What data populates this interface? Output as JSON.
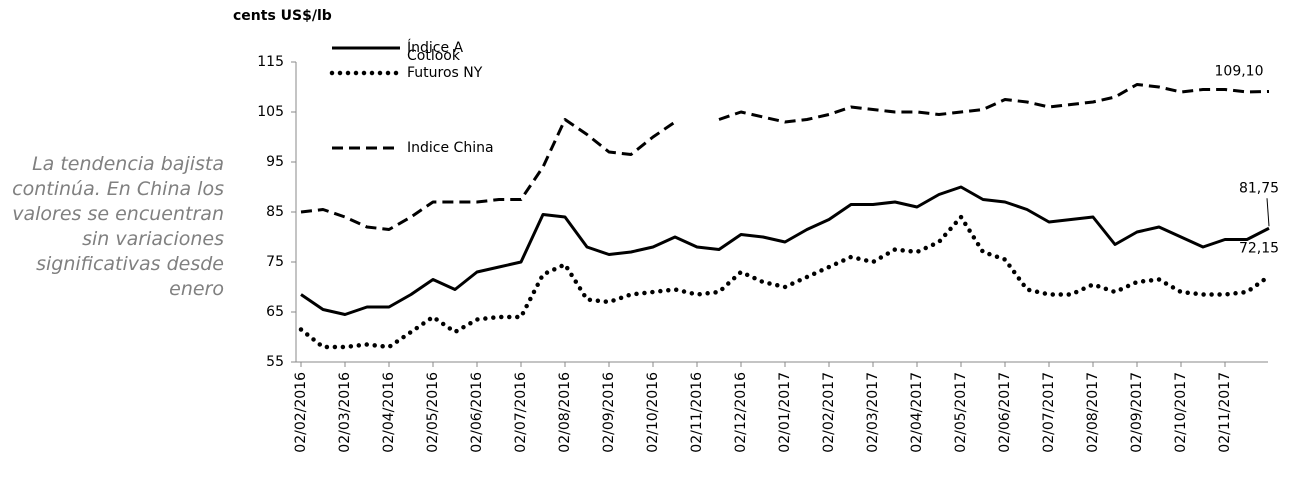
{
  "chart_data": {
    "type": "line",
    "y_label": "cents US$/lb",
    "annotation": "La tendencia bajista continúa. En China los valores se encuentran sin variaciones significativas desde enero",
    "categories": [
      "02/02/2016",
      null,
      "02/03/2016",
      null,
      "02/04/2016",
      null,
      "02/05/2016",
      null,
      "02/06/2016",
      null,
      "02/07/2016",
      null,
      "02/08/2016",
      null,
      "02/09/2016",
      null,
      "02/10/2016",
      null,
      "02/11/2016",
      null,
      "02/12/2016",
      null,
      "02/01/2017",
      null,
      "02/02/2017",
      null,
      "02/03/2017",
      null,
      "02/04/2017",
      null,
      "02/05/2017",
      null,
      "02/06/2017",
      null,
      "02/07/2017",
      null,
      "02/08/2017",
      null,
      "02/09/2017",
      null,
      "02/10/2017",
      null,
      "02/11/2017",
      null,
      null
    ],
    "series": [
      {
        "name": "Índice A",
        "color": "#000000",
        "style": "solid",
        "values": [
          68.5,
          65.5,
          64.5,
          66,
          66,
          68.5,
          71.5,
          69.5,
          73,
          74,
          75,
          84.5,
          84,
          78,
          76.5,
          77,
          78,
          80,
          78,
          77.5,
          80.5,
          80,
          79,
          81.5,
          83.5,
          86.5,
          86.5,
          87,
          86,
          88.5,
          90,
          87.5,
          87,
          85.5,
          83,
          83.5,
          84,
          78.5,
          81,
          82,
          80,
          78,
          79.5,
          79.5,
          81.75
        ],
        "value_labels": [
          null,
          null,
          null,
          null,
          null,
          null,
          null,
          null,
          null,
          null,
          null,
          null,
          null,
          null,
          null,
          null,
          null,
          null,
          null,
          null,
          null,
          null,
          null,
          null,
          null,
          null,
          null,
          null,
          null,
          null,
          null,
          null,
          null,
          null,
          null,
          null,
          null,
          null,
          null,
          null,
          null,
          null,
          null,
          null,
          "81,75"
        ]
      },
      {
        "name": "Cotlook Futuros NY",
        "color": "#000000",
        "style": "dotted",
        "values": [
          61.5,
          58,
          58,
          58.5,
          58,
          61,
          64,
          61,
          63.5,
          64,
          64,
          72.5,
          74.5,
          67.5,
          67,
          68.5,
          69,
          69.5,
          68.5,
          69,
          73,
          71,
          70,
          72,
          74,
          76,
          75,
          77.5,
          77,
          79,
          84,
          77,
          75.5,
          69.5,
          68.5,
          68.5,
          70.5,
          69,
          71,
          71.5,
          69,
          68.5,
          68.5,
          69,
          72.15
        ],
        "value_labels": [
          null,
          null,
          null,
          null,
          null,
          null,
          null,
          null,
          null,
          null,
          null,
          null,
          null,
          null,
          null,
          null,
          null,
          null,
          null,
          null,
          null,
          null,
          null,
          null,
          null,
          null,
          null,
          null,
          null,
          null,
          null,
          null,
          null,
          null,
          null,
          null,
          null,
          null,
          null,
          null,
          null,
          null,
          null,
          null,
          "72,15"
        ]
      },
      {
        "name": "Indice China",
        "color": "#000000",
        "style": "dashed",
        "values": [
          85,
          85.5,
          84,
          82,
          81.5,
          84,
          87,
          87,
          87,
          87.5,
          87.5,
          94,
          103.5,
          100.5,
          97,
          96.5,
          100,
          103,
          null,
          103.5,
          105,
          104,
          103,
          103.5,
          104.5,
          106,
          105.5,
          105,
          105,
          104.5,
          105,
          105.5,
          107.5,
          107,
          106,
          106.5,
          107,
          108,
          110.5,
          110,
          109,
          109.5,
          109.5,
          109,
          109.1
        ],
        "value_labels": [
          null,
          null,
          null,
          null,
          null,
          null,
          null,
          null,
          null,
          null,
          null,
          null,
          null,
          null,
          null,
          null,
          null,
          null,
          null,
          null,
          null,
          null,
          null,
          null,
          null,
          null,
          null,
          null,
          null,
          null,
          null,
          null,
          null,
          null,
          null,
          null,
          null,
          null,
          null,
          null,
          null,
          null,
          null,
          null,
          "109,10"
        ]
      }
    ],
    "ylim": [
      55,
      115
    ],
    "yticks": [
      55,
      65,
      75,
      85,
      95,
      105,
      115
    ],
    "grid": false,
    "legend": "upper left"
  }
}
